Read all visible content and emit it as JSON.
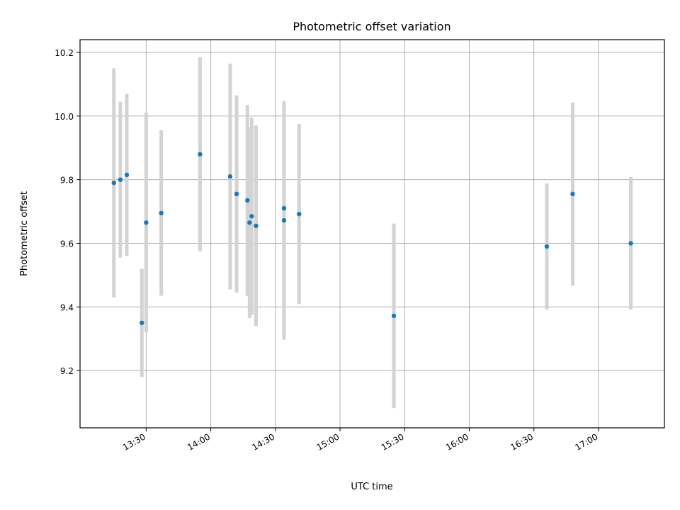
{
  "chart_data": {
    "type": "scatter",
    "title": "Photometric offset variation",
    "xlabel": "UTC time",
    "ylabel": "Photometric offset",
    "xlim": [
      "13:00",
      "17:30"
    ],
    "ylim": [
      9.02,
      10.24
    ],
    "x_ticks": [
      "13:30",
      "14:00",
      "14:30",
      "15:00",
      "15:30",
      "16:00",
      "16:30",
      "17:00"
    ],
    "y_ticks": [
      9.2,
      9.4,
      9.6,
      9.8,
      10.0,
      10.2
    ],
    "y_tick_labels": [
      "9.2",
      "9.4",
      "9.6",
      "9.8",
      "10.0",
      "10.2"
    ],
    "grid": true,
    "marker_color": "#1f77b4",
    "errorbar_color": "#d3d3d3",
    "points": [
      {
        "t": "13:15",
        "y": 9.79,
        "err": 0.36
      },
      {
        "t": "13:18",
        "y": 9.8,
        "err": 0.245
      },
      {
        "t": "13:21",
        "y": 9.815,
        "err": 0.255
      },
      {
        "t": "13:28",
        "y": 9.35,
        "err": 0.17
      },
      {
        "t": "13:30",
        "y": 9.665,
        "err": 0.345
      },
      {
        "t": "13:37",
        "y": 9.695,
        "err": 0.26
      },
      {
        "t": "13:55",
        "y": 9.88,
        "err": 0.305
      },
      {
        "t": "14:09",
        "y": 9.81,
        "err": 0.355
      },
      {
        "t": "14:12",
        "y": 9.755,
        "err": 0.31
      },
      {
        "t": "14:17",
        "y": 9.735,
        "err": 0.3
      },
      {
        "t": "14:18",
        "y": 9.665,
        "err": 0.3
      },
      {
        "t": "14:19",
        "y": 9.685,
        "err": 0.31
      },
      {
        "t": "14:21",
        "y": 9.655,
        "err": 0.315
      },
      {
        "t": "14:34",
        "y": 9.71,
        "err": 0.0
      },
      {
        "t": "14:34",
        "y": 9.672,
        "err": 0.375
      },
      {
        "t": "14:41",
        "y": 9.692,
        "err": 0.283
      },
      {
        "t": "15:25",
        "y": 9.372,
        "err": 0.29
      },
      {
        "t": "16:36",
        "y": 9.59,
        "err": 0.198
      },
      {
        "t": "16:48",
        "y": 9.755,
        "err": 0.288
      },
      {
        "t": "17:15",
        "y": 9.6,
        "err": 0.208
      }
    ]
  }
}
